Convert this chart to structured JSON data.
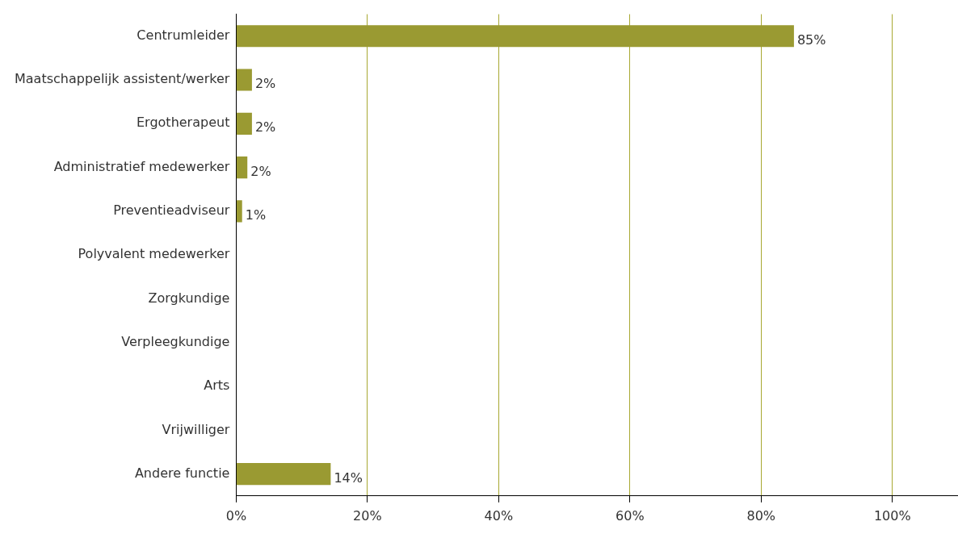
{
  "chart_data": {
    "type": "bar",
    "orientation": "horizontal",
    "categories": [
      "Centrumleider",
      "Maatschappelijk assistent/werker",
      "Ergotherapeut",
      "Administratief medewerker",
      "Preventieadviseur",
      "Polyvalent medewerker",
      "Zorgkundige",
      "Verpleegkundige",
      "Arts",
      "Vrijwilliger",
      "Andere functie"
    ],
    "values": [
      85,
      2.4,
      2.4,
      1.7,
      0.9,
      0,
      0,
      0,
      0,
      0,
      14.4
    ],
    "value_labels": [
      "85%",
      "2%",
      "2%",
      "2%",
      "1%",
      null,
      null,
      null,
      null,
      null,
      "14%"
    ],
    "color": "#9a9a32",
    "xlim": [
      0,
      110
    ],
    "xticks": [
      {
        "value": 0,
        "label": "0%"
      },
      {
        "value": 20,
        "label": "20%"
      },
      {
        "value": 40,
        "label": "40%"
      },
      {
        "value": 60,
        "label": "60%"
      },
      {
        "value": 80,
        "label": "80%"
      },
      {
        "value": 100,
        "label": "100%"
      }
    ],
    "grid": "x",
    "legend": false
  }
}
